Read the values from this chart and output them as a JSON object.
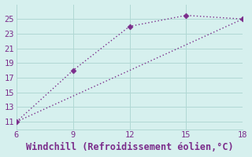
{
  "line1_x": [
    6,
    9,
    12,
    15,
    18
  ],
  "line1_y": [
    11,
    18,
    24,
    25.5,
    25
  ],
  "line2_x": [
    6,
    18
  ],
  "line2_y": [
    11,
    25
  ],
  "xlim": [
    6,
    18
  ],
  "ylim": [
    10.0,
    27.0
  ],
  "xticks": [
    6,
    9,
    12,
    15,
    18
  ],
  "yticks": [
    11,
    13,
    15,
    17,
    19,
    21,
    23,
    25
  ],
  "xlabel": "Windchill (Refroidissement éolien,°C)",
  "line_color": "#7b2d8b",
  "bg_color": "#d6f0ee",
  "grid_color": "#b0d8d4",
  "axis_color": "#7b2d8b",
  "marker_style": "D",
  "marker_size": 3.5,
  "linewidth": 1.0,
  "xlabel_fontsize": 8.5,
  "tick_fontsize": 7.5
}
